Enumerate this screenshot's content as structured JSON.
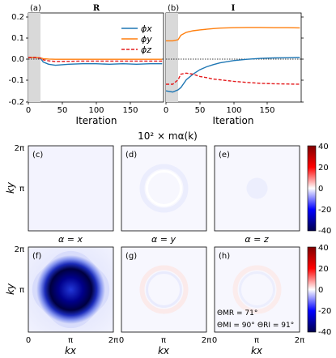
{
  "chart_data": [
    {
      "type": "line",
      "panel_label": "(a)",
      "title": "R",
      "xlabel": "Iteration",
      "xlim": [
        0,
        200
      ],
      "ylim": [
        -0.2,
        0.2
      ],
      "xticks": [
        "0",
        "50",
        "100",
        "150"
      ],
      "yticks": [
        "-0.2",
        "-0.1",
        "0.0",
        "0.1",
        "0.2"
      ],
      "x": [
        0,
        10,
        18,
        22,
        30,
        40,
        60,
        80,
        100,
        120,
        140,
        160,
        180,
        198
      ],
      "series": [
        {
          "name": "ϕx",
          "color": "#1f77b4",
          "style": "solid",
          "values": [
            0.0,
            0.0,
            -0.004,
            -0.02,
            -0.03,
            -0.035,
            -0.03,
            -0.028,
            -0.028,
            -0.03,
            -0.028,
            -0.03,
            -0.028,
            -0.028
          ]
        },
        {
          "name": "ϕy",
          "color": "#ff7f0e",
          "style": "solid",
          "values": [
            0.0,
            0.0,
            -0.002,
            -0.005,
            -0.007,
            -0.008,
            -0.008,
            -0.008,
            -0.008,
            -0.008,
            -0.008,
            -0.008,
            -0.008,
            -0.008
          ]
        },
        {
          "name": "ϕz",
          "color": "#e41a1c",
          "style": "dashed",
          "values": [
            0.0,
            0.0,
            -0.003,
            -0.01,
            -0.015,
            -0.018,
            -0.017,
            -0.016,
            -0.016,
            -0.016,
            -0.016,
            -0.016,
            -0.016,
            -0.016
          ]
        }
      ],
      "shaded_x": [
        0,
        18
      ],
      "reference_line_y": 0.0,
      "legend": "top-right"
    },
    {
      "type": "line",
      "panel_label": "(b)",
      "title": "I",
      "xlabel": "Iteration",
      "xlim": [
        0,
        200
      ],
      "ylim": [
        -0.2,
        0.2
      ],
      "xticks": [
        "0",
        "50",
        "100",
        "150"
      ],
      "x": [
        0,
        10,
        18,
        22,
        30,
        40,
        50,
        60,
        70,
        80,
        100,
        120,
        140,
        160,
        180,
        198
      ],
      "series": [
        {
          "name": "ϕx",
          "color": "#1f77b4",
          "style": "solid",
          "values": [
            -0.15,
            -0.155,
            -0.145,
            -0.135,
            -0.1,
            -0.075,
            -0.055,
            -0.042,
            -0.032,
            -0.024,
            -0.014,
            -0.008,
            -0.004,
            -0.002,
            -0.001,
            0.0
          ]
        },
        {
          "name": "ϕy",
          "color": "#ff7f0e",
          "style": "solid",
          "values": [
            0.075,
            0.075,
            0.08,
            0.1,
            0.113,
            0.12,
            0.124,
            0.127,
            0.13,
            0.132,
            0.134,
            0.135,
            0.135,
            0.134,
            0.134,
            0.133
          ]
        },
        {
          "name": "ϕz",
          "color": "#e41a1c",
          "style": "dashed",
          "values": [
            -0.12,
            -0.12,
            -0.1,
            -0.075,
            -0.07,
            -0.075,
            -0.085,
            -0.09,
            -0.097,
            -0.1,
            -0.107,
            -0.112,
            -0.116,
            -0.118,
            -0.119,
            -0.12
          ]
        }
      ],
      "shaded_x": [
        0,
        18
      ],
      "reference_line_y": 0.0
    },
    {
      "type": "heatmap",
      "title": "10² × mα(k)",
      "xlabel": "kx",
      "ylabel": "ky",
      "xticks": [
        "0",
        "π",
        "2π"
      ],
      "yticks": [
        "2π",
        "π"
      ],
      "column_labels": [
        "α = x",
        "α = y",
        "α = z"
      ],
      "colorbar_ticks": [
        "40",
        "20",
        "0",
        "-20",
        "-40"
      ],
      "colorbar_range": [
        -40,
        40
      ],
      "colormap": "seismic",
      "rows": [
        {
          "panels": [
            {
              "label": "(c)",
              "feature": "near-zero uniform",
              "intensity": -1
            },
            {
              "label": "(d)",
              "feature": "faint ring",
              "intensity": 2
            },
            {
              "label": "(e)",
              "feature": "faint central blob",
              "intensity": -2
            }
          ]
        },
        {
          "panels": [
            {
              "label": "(f)",
              "feature": "strong negative rounded-square centered at (π,π)",
              "intensity": -40
            },
            {
              "label": "(g)",
              "feature": "faint ring",
              "intensity": 4
            },
            {
              "label": "(h)",
              "feature": "faint ring",
              "intensity": 3
            }
          ]
        }
      ],
      "annotations": [
        "ΘMR = 71°",
        "ΘMI = 90°",
        "ΘRI = 91°"
      ]
    }
  ]
}
